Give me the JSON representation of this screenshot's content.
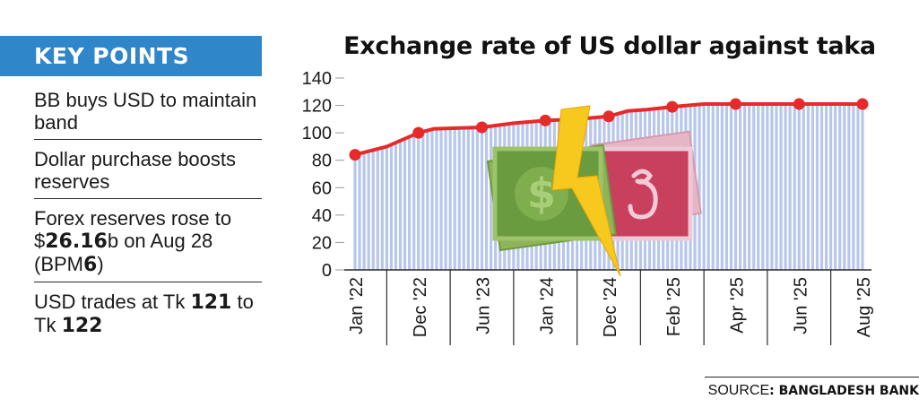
{
  "key_points": {
    "header": "KEY POINTS",
    "items": [
      {
        "text": "BB buys USD to maintain band"
      },
      {
        "text_1": "Dollar purchase boosts reserves"
      },
      {
        "pre": "Forex reserves rose to $",
        "bold_1": "26.16",
        "mid": "b on Aug 28 (BPM",
        "bold_2": "6",
        "post": ")"
      },
      {
        "pre": "USD trades at Tk ",
        "bold_1": "121",
        "mid": " to Tk ",
        "bold_2": "122"
      }
    ]
  },
  "source": {
    "label": "SOURCE",
    "value": ": BANGLADESH BANK"
  },
  "icons": [
    "dollar-banknote-icon",
    "taka-banknote-icon",
    "lightning-bolt-icon"
  ],
  "colors": {
    "header_bg": "#2f86c8",
    "line": "#e62a2a",
    "bars": "#b7c6ea",
    "dollar_note": "#6a9b3f",
    "taka_note": "#c9405f",
    "bolt": "#f7c81e"
  },
  "chart_data": {
    "type": "line",
    "title": "Exchange rate of US dollar against taka",
    "xlabel": "",
    "ylabel": "",
    "ylim": [
      0,
      140
    ],
    "yticks": [
      "0",
      "20",
      "40",
      "60",
      "80",
      "100",
      "120",
      "140"
    ],
    "categories": [
      "Jan '22",
      "Dec '22",
      "Jun '23",
      "Jan '24",
      "Dec '24",
      "Feb '25",
      "Apr '25",
      "Jun '25",
      "Aug '25"
    ],
    "line": {
      "x": [
        0,
        0.5,
        1,
        1.25,
        2,
        2.5,
        3,
        3.5,
        4,
        4.3,
        4.6,
        5,
        5.5,
        6,
        6.5,
        7,
        7.5,
        8
      ],
      "y": [
        84,
        90,
        100,
        103,
        104,
        107,
        109,
        110,
        112,
        116,
        117,
        119,
        121,
        121,
        121,
        121,
        121,
        121
      ]
    },
    "markers": {
      "x": [
        0,
        1,
        2,
        3,
        4,
        5,
        6,
        7,
        8
      ],
      "y": [
        84,
        100,
        104,
        109,
        112,
        119,
        121,
        121,
        121
      ]
    },
    "grid": false,
    "legend": "none"
  }
}
